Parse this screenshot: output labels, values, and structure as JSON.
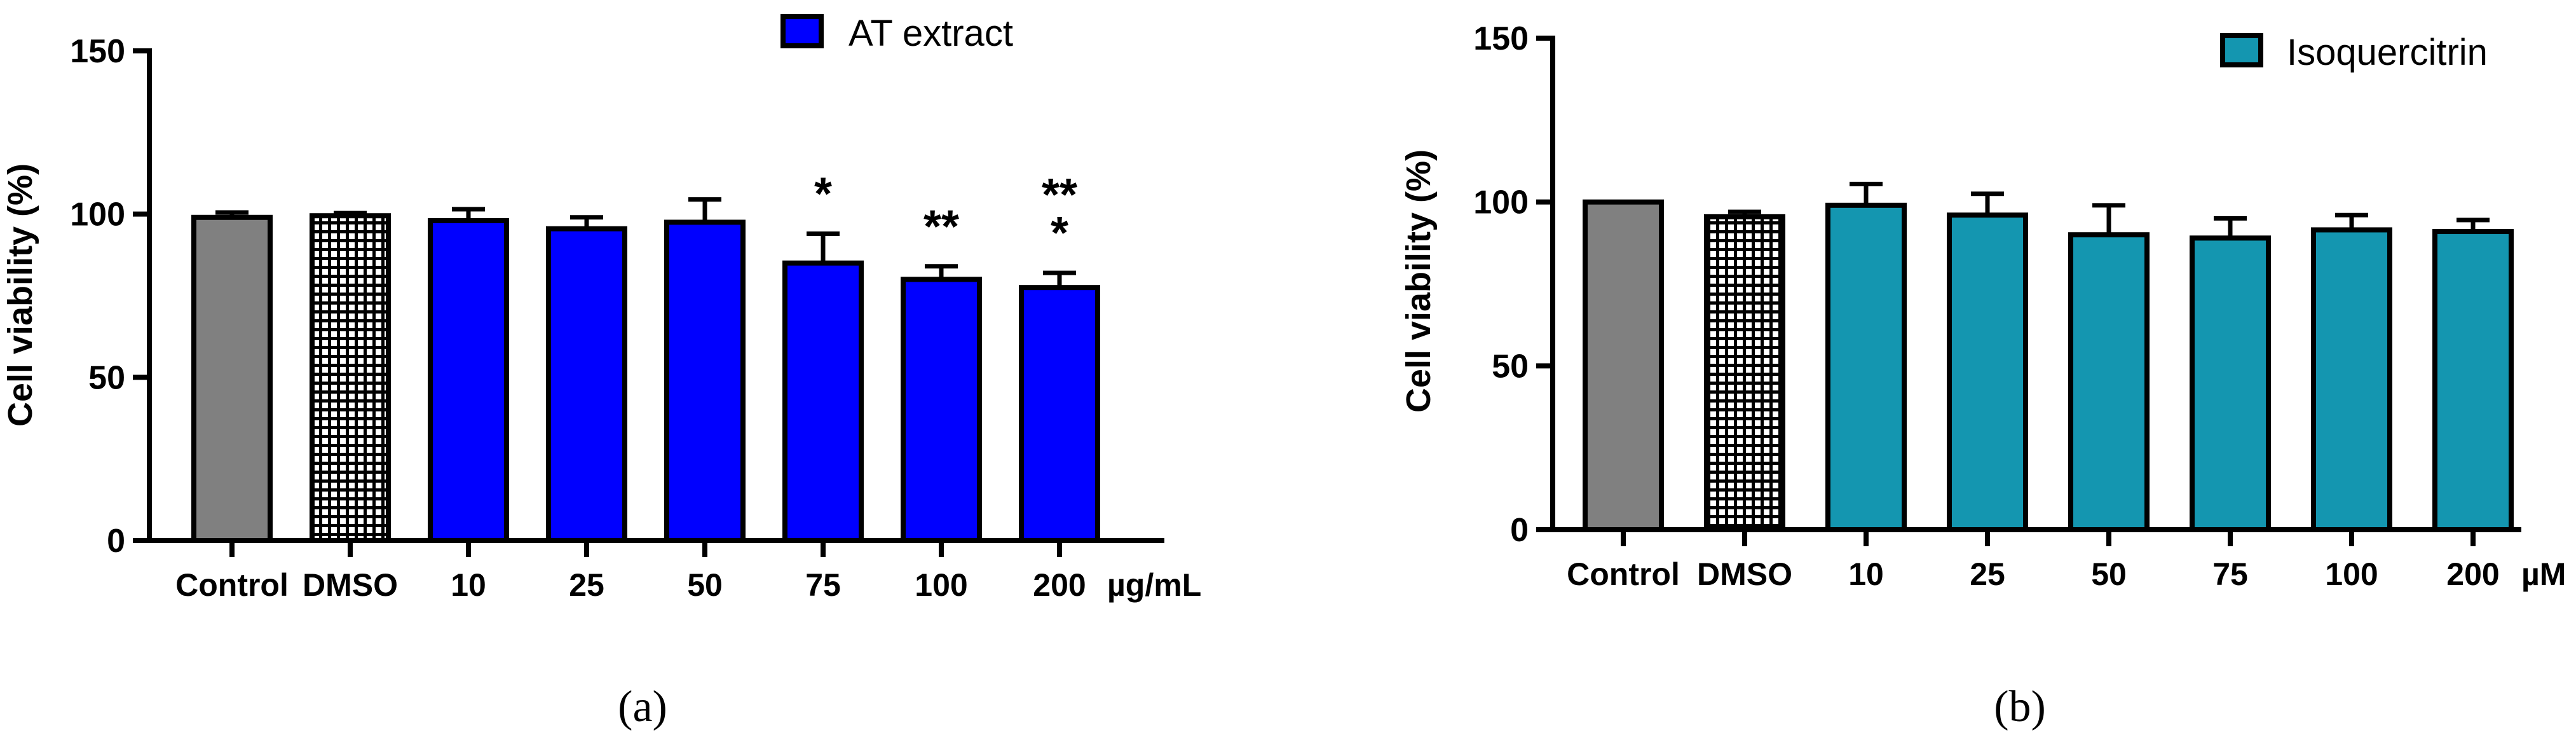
{
  "colors": {
    "control": "#808080",
    "at_extract": "#0000ff",
    "isoquercitrin": "#1496b0",
    "outline": "#000000",
    "dmso_fill": "#ffffff"
  },
  "chart_data": [
    {
      "type": "bar",
      "panel_label": "(a)",
      "title": "",
      "xlabel": "",
      "ylabel": "Cell viability (%)",
      "unit_label": "µg/mL",
      "ylim": [
        0,
        150
      ],
      "yticks": [
        0,
        50,
        100,
        150
      ],
      "grid": false,
      "legend": {
        "label": "AT extract",
        "position": "top-right"
      },
      "categories": [
        "Control",
        "DMSO",
        "10",
        "25",
        "50",
        "75",
        "100",
        "200"
      ],
      "values": [
        99,
        99.5,
        98,
        95.5,
        97.5,
        85,
        80,
        77.5
      ],
      "errors": [
        1.5,
        0.8,
        3.5,
        3.5,
        7,
        9,
        4,
        4.5
      ],
      "fill_kind": [
        "control",
        "dmso",
        "series",
        "series",
        "series",
        "series",
        "series",
        "series"
      ],
      "annotations": [
        "",
        "",
        "",
        "",
        "",
        "*",
        "**",
        "**\n*"
      ]
    },
    {
      "type": "bar",
      "panel_label": "(b)",
      "title": "",
      "xlabel": "",
      "ylabel": "Cell viability (%)",
      "unit_label": "µM",
      "ylim": [
        0,
        150
      ],
      "yticks": [
        0,
        50,
        100,
        150
      ],
      "grid": false,
      "legend": {
        "label": "Isoquercitrin",
        "position": "top-right"
      },
      "categories": [
        "Control",
        "DMSO",
        "10",
        "25",
        "50",
        "75",
        "100",
        "200"
      ],
      "values": [
        100,
        95.5,
        99,
        96,
        90,
        89,
        91.5,
        91
      ],
      "errors": [
        0,
        1.5,
        6.5,
        6.5,
        9,
        6,
        4.5,
        3.5
      ],
      "fill_kind": [
        "control",
        "dmso",
        "series",
        "series",
        "series",
        "series",
        "series",
        "series"
      ],
      "annotations": [
        "",
        "",
        "",
        "",
        "",
        "",
        "",
        ""
      ]
    }
  ]
}
